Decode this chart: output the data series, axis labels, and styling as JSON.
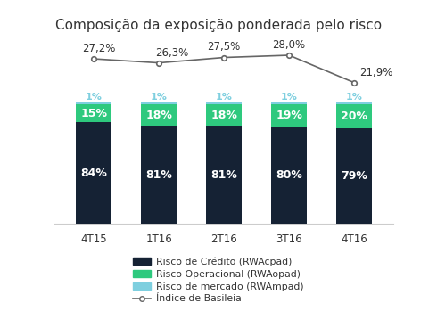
{
  "title": "Composição da exposição ponderada pelo risco",
  "categories": [
    "4T15",
    "1T16",
    "2T16",
    "3T16",
    "4T16"
  ],
  "credito": [
    84,
    81,
    81,
    80,
    79
  ],
  "operacional": [
    15,
    18,
    18,
    19,
    20
  ],
  "mercado": [
    1,
    1,
    1,
    1,
    1
  ],
  "basileia": [
    27.2,
    26.3,
    27.5,
    28.0,
    21.9
  ],
  "basileia_labels": [
    "27,2%",
    "26,3%",
    "27,5%",
    "28,0%",
    "21,9%"
  ],
  "credito_labels": [
    "84%",
    "81%",
    "81%",
    "80%",
    "79%"
  ],
  "operacional_labels": [
    "15%",
    "18%",
    "18%",
    "19%",
    "20%"
  ],
  "mercado_labels": [
    "1%",
    "1%",
    "1%",
    "1%",
    "1%"
  ],
  "color_credito": "#152234",
  "color_operacional": "#2ec97e",
  "color_mercado": "#7ecfdf",
  "color_line": "#666666",
  "legend_labels": [
    "Risco de Crédito (RWAcpad)",
    "Risco Operacional (RWAopad)",
    "Risco de mercado (RWAmpad)",
    "Índice de Basileia"
  ],
  "bar_width": 0.55,
  "background_color": "#ffffff"
}
